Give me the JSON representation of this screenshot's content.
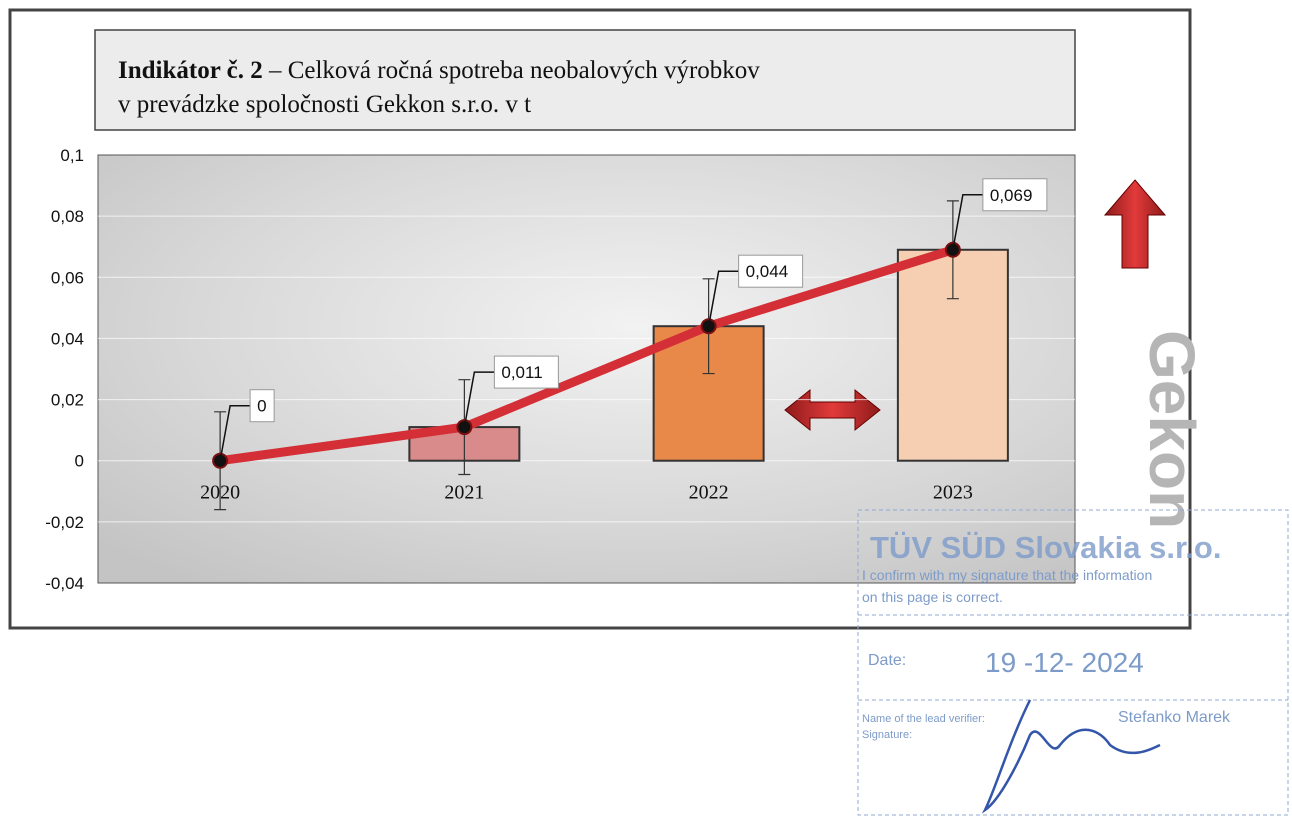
{
  "chart_data": {
    "type": "bar",
    "title_parts": [
      "Indikátor č. 2",
      "– Celková ročná spotreba neobalových výrobkov",
      "v prevádzke spoločnosti Gekkon s.r.o. v t"
    ],
    "categories": [
      "2020",
      "2021",
      "2022",
      "2023"
    ],
    "values": [
      0,
      0.011,
      0.044,
      0.069
    ],
    "value_labels": [
      "0",
      "0,011",
      "0,044",
      "0,069"
    ],
    "errors": [
      0.016,
      0.0155,
      0.0155,
      0.016
    ],
    "bar_colors": [
      "#d98a8a",
      "#d98a8a",
      "#e8894a",
      "#f6cfb2"
    ],
    "line_color": "#d42f36",
    "ylim": [
      -0.04,
      0.1
    ],
    "yticks": [
      {
        "value": 0.1,
        "label": "0,1"
      },
      {
        "value": 0.08,
        "label": "0,08"
      },
      {
        "value": 0.06,
        "label": "0,06"
      },
      {
        "value": 0.04,
        "label": "0,04"
      },
      {
        "value": 0.02,
        "label": "0,02"
      },
      0,
      {
        "value": -0.02,
        "label": "-0,02"
      },
      {
        "value": -0.04,
        "label": "-0,04"
      }
    ],
    "grid": true
  },
  "watermark": "Gekon",
  "stamp": {
    "company": "TÜV SÜD Slovakia s.r.o.",
    "confirm_line1": "I confirm with my signature that the information",
    "confirm_line2": "on this page is correct.",
    "date_label": "Date:",
    "date": "19 -12- 2024",
    "verifier_label": "Name of the lead verifier:",
    "verifier": "Stefanko Marek",
    "signature_label": "Signature:"
  }
}
